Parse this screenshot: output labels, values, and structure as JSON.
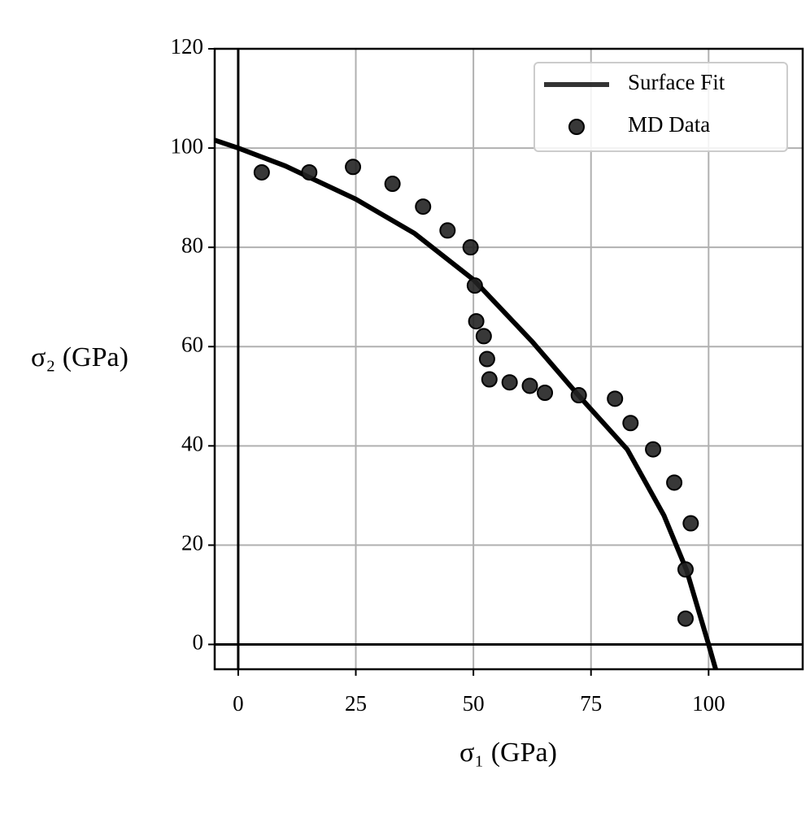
{
  "chart_data": {
    "type": "scatter",
    "xlabel": "σ₁ (GPa)",
    "ylabel": "σ₂ (GPa)",
    "xlim": [
      -5,
      120
    ],
    "ylim": [
      -5,
      120
    ],
    "xticks": [
      0,
      25,
      50,
      75,
      100
    ],
    "yticks": [
      0,
      20,
      40,
      60,
      80,
      100,
      120
    ],
    "grid": true,
    "zero_lines": true,
    "legend": "upper right",
    "series": [
      {
        "name": "Surface Fit",
        "type": "line",
        "color": "#000000",
        "x": [
          -5,
          0,
          10,
          25,
          37.5,
          50,
          62.5,
          72.5,
          82.7,
          90.5,
          95.3,
          100,
          101.5
        ],
        "values": [
          101.6,
          100,
          96.4,
          89.7,
          82.8,
          73.5,
          61,
          50,
          39.3,
          26,
          15,
          0,
          -5
        ]
      },
      {
        "name": "MD Data",
        "type": "scatter",
        "color": "#222222",
        "x": [
          5.0,
          15.1,
          24.4,
          32.8,
          39.3,
          44.5,
          49.4,
          50.3,
          50.6,
          52.2,
          52.9,
          53.4,
          57.7,
          62.0,
          65.2,
          72.4,
          80.1,
          83.4,
          88.2,
          92.7,
          96.2,
          95.1,
          95.1
        ],
        "values": [
          95.1,
          95.1,
          96.2,
          92.8,
          88.2,
          83.4,
          80.0,
          72.3,
          65.1,
          62.1,
          57.5,
          53.4,
          52.8,
          52.1,
          50.7,
          50.2,
          49.5,
          44.6,
          39.3,
          32.6,
          24.4,
          15.1,
          5.2
        ]
      }
    ]
  }
}
